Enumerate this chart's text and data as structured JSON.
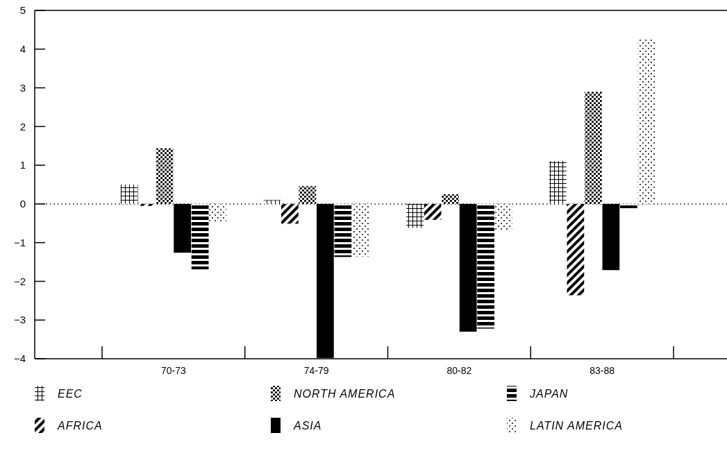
{
  "chart_data": {
    "type": "bar",
    "categories": [
      "70-73",
      "74-79",
      "80-82",
      "83-88"
    ],
    "series": [
      {
        "name": "EEC",
        "color": "#000000",
        "values": [
          0.5,
          0.1,
          -0.62,
          1.11
        ]
      },
      {
        "name": "AFRICA",
        "color": "#000000",
        "values": [
          -0.05,
          -0.51,
          -0.41,
          -2.36
        ]
      },
      {
        "name": "NORTH AMERICA",
        "color": "#000000",
        "values": [
          1.44,
          0.46,
          0.25,
          2.9
        ]
      },
      {
        "name": "ASIA",
        "color": "#000000",
        "values": [
          -1.26,
          -3.98,
          -3.3,
          -1.71
        ]
      },
      {
        "name": "JAPAN",
        "color": "#000000",
        "values": [
          -1.69,
          -1.37,
          -3.22,
          -0.11
        ]
      },
      {
        "name": "LATIN AMERICA",
        "color": "#000000",
        "values": [
          -0.48,
          -1.36,
          -0.68,
          4.25
        ]
      }
    ],
    "ylim": [
      -4,
      5
    ],
    "yticks": [
      {
        "value": -4,
        "label": "−4"
      },
      {
        "value": -3,
        "label": "−3"
      },
      {
        "value": -2,
        "label": "−2"
      },
      {
        "value": -1,
        "label": "−1"
      },
      0,
      1,
      2,
      3,
      4,
      5
    ],
    "ref_lines": [
      {
        "axis": "y",
        "value": 0,
        "line_style": "dotted"
      }
    ],
    "grid": false,
    "legend": "bottom"
  }
}
